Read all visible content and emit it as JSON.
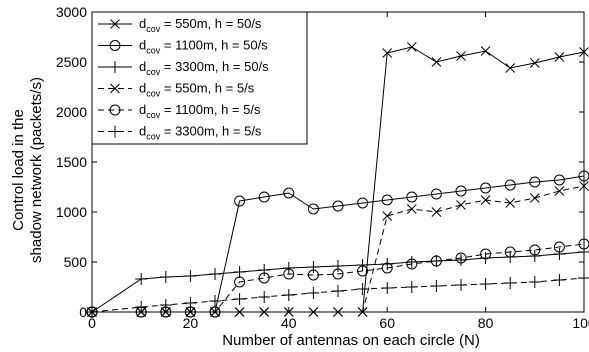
{
  "chart_data": {
    "type": "line",
    "xlabel": "Number of antennas on each circle (N)",
    "ylabel_lines": [
      "Control load in the",
      "shadow network (packets/s)"
    ],
    "xlim": [
      0,
      100
    ],
    "ylim": [
      0,
      3000
    ],
    "xticks": [
      0,
      20,
      40,
      60,
      80,
      100
    ],
    "yticks": [
      0,
      500,
      1000,
      1500,
      2000,
      2500,
      3000
    ],
    "grid": false,
    "legend_position": "top-left",
    "series": [
      {
        "name": "d_cov = 550m, h = 50/s",
        "legend_main": "d",
        "legend_sub": "cov",
        "legend_rest": " = 550m, h = 50/s",
        "marker": "x",
        "dash": "solid",
        "x": [
          0,
          10,
          15,
          20,
          25,
          30,
          35,
          40,
          45,
          50,
          55,
          60,
          65,
          70,
          75,
          80,
          85,
          90,
          95,
          100
        ],
        "y": [
          0,
          0,
          0,
          0,
          0,
          0,
          0,
          0,
          0,
          0,
          0,
          2590,
          2650,
          2500,
          2560,
          2610,
          2440,
          2490,
          2550,
          2600
        ]
      },
      {
        "name": "d_cov = 1100m, h = 50/s",
        "legend_main": "d",
        "legend_sub": "cov",
        "legend_rest": " = 1100m, h = 50/s",
        "marker": "o",
        "dash": "solid",
        "x": [
          0,
          10,
          15,
          20,
          25,
          30,
          35,
          40,
          45,
          50,
          55,
          60,
          65,
          70,
          75,
          80,
          85,
          90,
          95,
          100
        ],
        "y": [
          0,
          0,
          0,
          0,
          0,
          1110,
          1150,
          1190,
          1030,
          1060,
          1090,
          1120,
          1150,
          1180,
          1210,
          1240,
          1270,
          1300,
          1320,
          1360
        ]
      },
      {
        "name": "d_cov = 3300m, h = 50/s",
        "legend_main": "d",
        "legend_sub": "cov",
        "legend_rest": " = 3300m, h = 50/s",
        "marker": "+",
        "dash": "solid",
        "x": [
          0,
          10,
          15,
          20,
          25,
          30,
          35,
          40,
          45,
          50,
          55,
          60,
          65,
          70,
          75,
          80,
          85,
          90,
          95,
          100
        ],
        "y": [
          0,
          330,
          350,
          360,
          380,
          400,
          420,
          440,
          450,
          460,
          470,
          480,
          500,
          510,
          520,
          540,
          550,
          560,
          580,
          600
        ]
      },
      {
        "name": "d_cov = 550m, h = 5/s",
        "legend_main": "d",
        "legend_sub": "cov",
        "legend_rest": " = 550m, h = 5/s",
        "marker": "x",
        "dash": "dashed",
        "x": [
          0,
          10,
          15,
          20,
          25,
          30,
          35,
          40,
          45,
          50,
          55,
          60,
          65,
          70,
          75,
          80,
          85,
          90,
          95,
          100
        ],
        "y": [
          0,
          0,
          0,
          0,
          0,
          0,
          0,
          0,
          0,
          0,
          0,
          960,
          1030,
          1000,
          1070,
          1120,
          1090,
          1140,
          1210,
          1260
        ]
      },
      {
        "name": "d_cov = 1100m, h = 5/s",
        "legend_main": "d",
        "legend_sub": "cov",
        "legend_rest": " = 1100m, h = 5/s",
        "marker": "o",
        "dash": "dashed",
        "x": [
          0,
          10,
          15,
          20,
          25,
          30,
          35,
          40,
          45,
          50,
          55,
          60,
          65,
          70,
          75,
          80,
          85,
          90,
          95,
          100
        ],
        "y": [
          0,
          0,
          0,
          0,
          0,
          300,
          340,
          380,
          370,
          380,
          410,
          440,
          480,
          510,
          540,
          580,
          600,
          620,
          650,
          680
        ]
      },
      {
        "name": "d_cov = 3300m, h = 5/s",
        "legend_main": "d",
        "legend_sub": "cov",
        "legend_rest": " = 3300m, h = 5/s",
        "marker": "+",
        "dash": "dashed",
        "x": [
          0,
          10,
          15,
          20,
          25,
          30,
          35,
          40,
          45,
          50,
          55,
          60,
          65,
          70,
          75,
          80,
          85,
          90,
          95,
          100
        ],
        "y": [
          0,
          50,
          70,
          90,
          110,
          130,
          150,
          170,
          190,
          210,
          230,
          240,
          250,
          260,
          270,
          280,
          290,
          300,
          320,
          340
        ]
      }
    ]
  }
}
